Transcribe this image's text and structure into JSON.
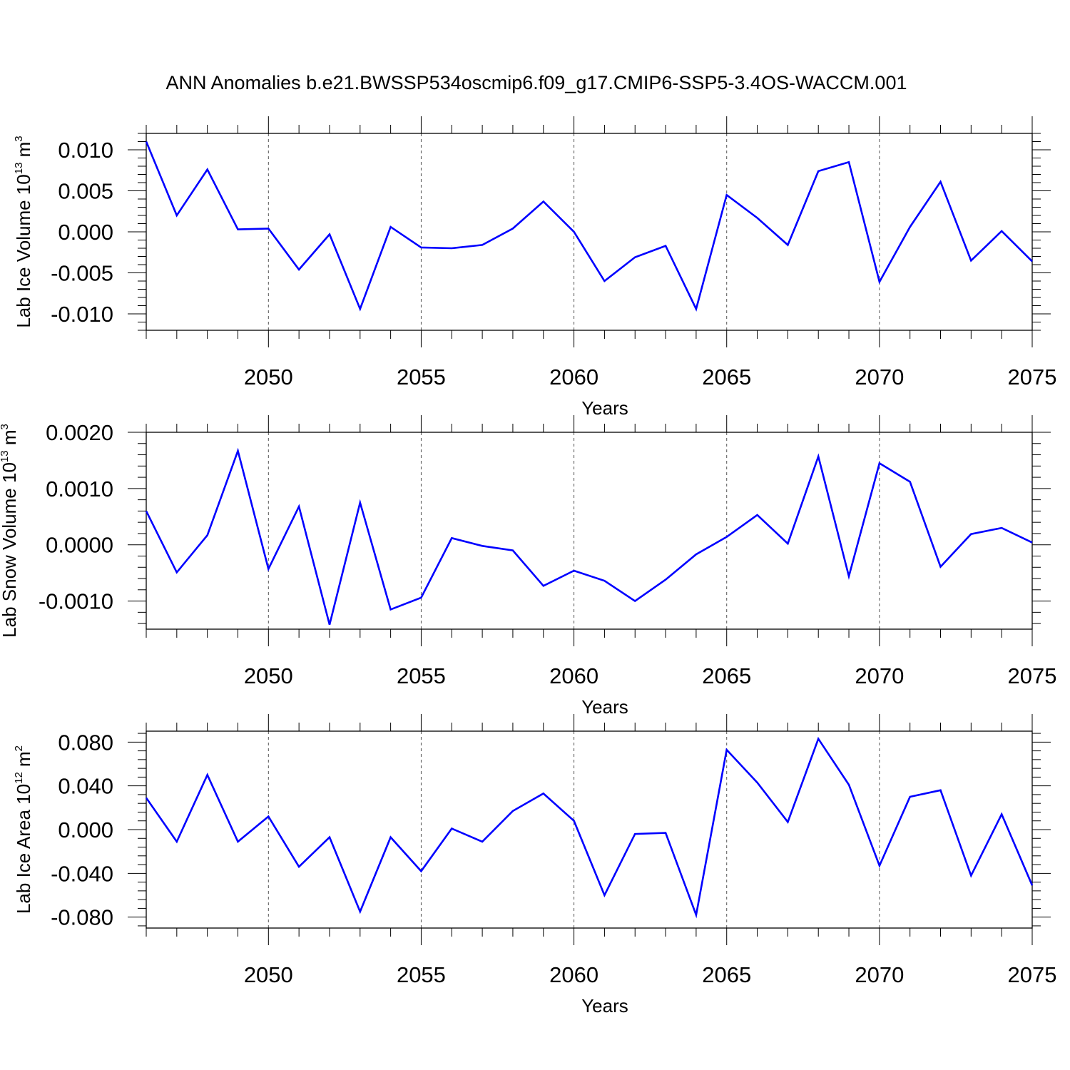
{
  "title": "ANN Anomalies b.e21.BWSSP534oscmip6.f09_g17.CMIP6-SSP5-3.4OS-WACCM.001",
  "line_color": "#0000ff",
  "chart_data": [
    {
      "type": "line",
      "xlabel": "Years",
      "ylabel": "Lab Ice Volume 10",
      "ylabel_exp": "13",
      "ylabel_unit": " m",
      "ylabel_unit_exp": "3",
      "xlim": [
        2046,
        2075
      ],
      "ylim": [
        -0.012,
        0.012
      ],
      "xticks": [
        2050,
        2055,
        2060,
        2065,
        2070,
        2075
      ],
      "yticks": [
        0.01,
        0.005,
        0.0,
        -0.005,
        -0.01
      ],
      "yticklabels": [
        "0.010",
        "0.005",
        "0.000",
        "-0.005",
        "-0.010"
      ],
      "grid_x": true,
      "x": [
        2046,
        2047,
        2048,
        2049,
        2050,
        2051,
        2052,
        2053,
        2054,
        2055,
        2056,
        2057,
        2058,
        2059,
        2060,
        2061,
        2062,
        2063,
        2064,
        2065,
        2066,
        2067,
        2068,
        2069,
        2070,
        2071,
        2072,
        2073,
        2074,
        2075
      ],
      "values": [
        0.011,
        0.002,
        0.0076,
        0.0003,
        0.0004,
        -0.0046,
        -0.0003,
        -0.0094,
        0.0006,
        -0.0019,
        -0.002,
        -0.0016,
        0.0004,
        0.0037,
        0.0,
        -0.006,
        -0.0031,
        -0.0017,
        -0.0094,
        0.0045,
        0.0017,
        -0.0016,
        0.0074,
        0.0085,
        -0.0061,
        0.0006,
        0.0061,
        -0.0035,
        0.0001,
        -0.0036
      ]
    },
    {
      "type": "line",
      "xlabel": "Years",
      "ylabel": "Lab Snow Volume 10",
      "ylabel_exp": "13",
      "ylabel_unit": " m",
      "ylabel_unit_exp": "3",
      "xlim": [
        2046,
        2075
      ],
      "ylim": [
        -0.0015,
        0.002
      ],
      "xticks": [
        2050,
        2055,
        2060,
        2065,
        2070,
        2075
      ],
      "yticks": [
        0.002,
        0.001,
        0.0,
        -0.001
      ],
      "yticklabels": [
        "0.0020",
        "0.0010",
        "0.0000",
        "-0.0010"
      ],
      "grid_x": true,
      "x": [
        2046,
        2047,
        2048,
        2049,
        2050,
        2051,
        2052,
        2053,
        2054,
        2055,
        2056,
        2057,
        2058,
        2059,
        2060,
        2061,
        2062,
        2063,
        2064,
        2065,
        2066,
        2067,
        2068,
        2069,
        2070,
        2071,
        2072,
        2073,
        2074,
        2075
      ],
      "values": [
        0.0006,
        -0.00049,
        0.00017,
        0.00167,
        -0.00043,
        0.00068,
        -0.00142,
        0.00075,
        -0.00115,
        -0.00094,
        0.00012,
        -2e-05,
        -0.0001,
        -0.00073,
        -0.00046,
        -0.00064,
        -0.001,
        -0.00062,
        -0.00017,
        0.00014,
        0.00053,
        2e-05,
        0.00157,
        -0.00056,
        0.00145,
        0.00112,
        -0.00039,
        0.00019,
        0.0003,
        4e-05
      ]
    },
    {
      "type": "line",
      "xlabel": "Years",
      "ylabel": "Lab Ice Area 10",
      "ylabel_exp": "12",
      "ylabel_unit": " m",
      "ylabel_unit_exp": "2",
      "xlim": [
        2046,
        2075
      ],
      "ylim": [
        -0.09,
        0.09
      ],
      "xticks": [
        2050,
        2055,
        2060,
        2065,
        2070,
        2075
      ],
      "yticks": [
        0.08,
        0.04,
        0.0,
        -0.04,
        -0.08
      ],
      "yticklabels": [
        "0.080",
        "0.040",
        "0.000",
        "-0.040",
        "-0.080"
      ],
      "grid_x": true,
      "x": [
        2046,
        2047,
        2048,
        2049,
        2050,
        2051,
        2052,
        2053,
        2054,
        2055,
        2056,
        2057,
        2058,
        2059,
        2060,
        2061,
        2062,
        2063,
        2064,
        2065,
        2066,
        2067,
        2068,
        2069,
        2070,
        2071,
        2072,
        2073,
        2074,
        2075
      ],
      "values": [
        0.029,
        -0.011,
        0.05,
        -0.011,
        0.012,
        -0.034,
        -0.007,
        -0.075,
        -0.007,
        -0.038,
        0.001,
        -0.011,
        0.017,
        0.033,
        0.008,
        -0.06,
        -0.004,
        -0.003,
        -0.078,
        0.073,
        0.043,
        0.007,
        0.083,
        0.041,
        -0.033,
        0.03,
        0.036,
        -0.042,
        0.014,
        -0.051
      ]
    }
  ]
}
